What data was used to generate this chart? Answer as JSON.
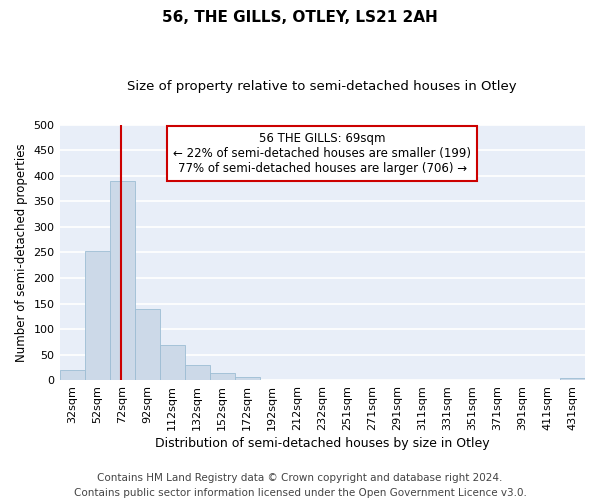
{
  "title": "56, THE GILLS, OTLEY, LS21 2AH",
  "subtitle": "Size of property relative to semi-detached houses in Otley",
  "xlabel": "Distribution of semi-detached houses by size in Otley",
  "ylabel": "Number of semi-detached properties",
  "bar_color": "#ccd9e8",
  "bar_edge_color": "#9dbdd4",
  "bar_edge_width": 0.6,
  "background_color": "#e8eef8",
  "grid_color": "#ffffff",
  "categories": [
    "32sqm",
    "52sqm",
    "72sqm",
    "92sqm",
    "112sqm",
    "132sqm",
    "152sqm",
    "172sqm",
    "192sqm",
    "212sqm",
    "232sqm",
    "251sqm",
    "271sqm",
    "291sqm",
    "311sqm",
    "331sqm",
    "351sqm",
    "371sqm",
    "391sqm",
    "411sqm",
    "431sqm"
  ],
  "values": [
    19,
    253,
    390,
    140,
    68,
    30,
    15,
    6,
    1,
    0,
    0,
    0,
    0,
    0,
    0,
    0,
    0,
    0,
    0,
    0,
    4
  ],
  "ylim": [
    0,
    500
  ],
  "yticks": [
    0,
    50,
    100,
    150,
    200,
    250,
    300,
    350,
    400,
    450,
    500
  ],
  "red_line_x": 1.95,
  "annotation_text": "56 THE GILLS: 69sqm\n← 22% of semi-detached houses are smaller (199)\n77% of semi-detached houses are larger (706) →",
  "annotation_box_color": "#ffffff",
  "annotation_border_color": "#cc0000",
  "footer_text": "Contains HM Land Registry data © Crown copyright and database right 2024.\nContains public sector information licensed under the Open Government Licence v3.0.",
  "footer_fontsize": 7.5,
  "title_fontsize": 11,
  "subtitle_fontsize": 9.5,
  "annotation_fontsize": 8.5,
  "tick_fontsize": 8,
  "ylabel_fontsize": 8.5,
  "xlabel_fontsize": 9
}
